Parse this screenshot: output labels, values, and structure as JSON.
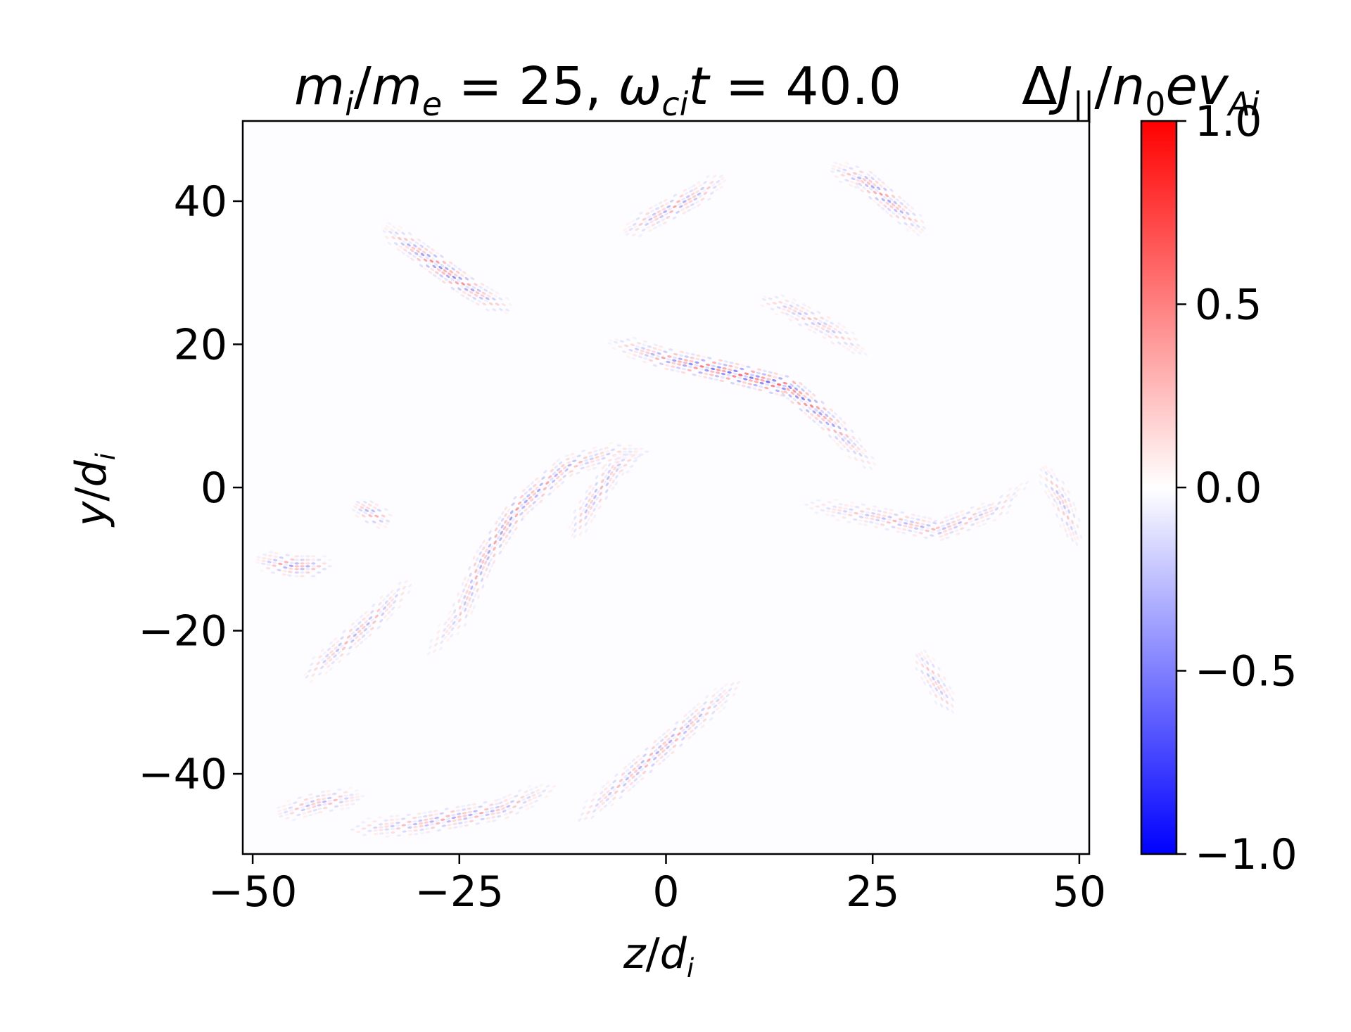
{
  "chart_data": {
    "type": "heatmap",
    "title": {
      "m": "m",
      "i": "i",
      "slash": "/",
      "e": "e",
      "eq1": " = 25, ",
      "omega": "ω",
      "ci": "ci",
      "t": "t",
      "eq2": " = 40.0"
    },
    "colorbar_label": {
      "delta": "Δ",
      "J": "J",
      "par": "||",
      "slash": "/",
      "n": "n",
      "zero": "0",
      "ev": "ev",
      "A": "A",
      "i": "i"
    },
    "xlabel": {
      "var": "z",
      "slash": "/",
      "d": "d",
      "sub": "i"
    },
    "ylabel": {
      "var": "y",
      "slash": "/",
      "d": "d",
      "sub": "i"
    },
    "xlim": [
      -51.2,
      51.2
    ],
    "ylim": [
      -51.2,
      51.2
    ],
    "x_ticks": [
      {
        "value": -50,
        "label": "−50"
      },
      {
        "value": -25,
        "label": "−25"
      },
      {
        "value": 0,
        "label": "0"
      },
      {
        "value": 25,
        "label": "25"
      },
      {
        "value": 50,
        "label": "50"
      }
    ],
    "y_ticks": [
      {
        "value": 40,
        "label": "40"
      },
      {
        "value": 20,
        "label": "20"
      },
      {
        "value": 0,
        "label": "0"
      },
      {
        "value": -20,
        "label": "−20"
      },
      {
        "value": -40,
        "label": "−40"
      }
    ],
    "colorbar": {
      "range": [
        -1.0,
        1.0
      ],
      "colormap": "bwr",
      "colors": {
        "low": "#0000ff",
        "mid": "#ffffff",
        "high": "#ff0000"
      },
      "ticks": [
        {
          "value": 1.0,
          "label": "1.0"
        },
        {
          "value": 0.5,
          "label": "0.5"
        },
        {
          "value": 0.0,
          "label": "0.0"
        },
        {
          "value": -0.5,
          "label": "−0.5"
        },
        {
          "value": -1.0,
          "label": "−1.0"
        }
      ]
    },
    "structures": [
      {
        "name": "filament-upper-left",
        "path": [
          [
            -35,
            37
          ],
          [
            -30,
            33
          ],
          [
            -24,
            28
          ],
          [
            -18,
            24
          ]
        ],
        "amp": 0.55
      },
      {
        "name": "filament-center-right",
        "path": [
          [
            -8,
            21
          ],
          [
            0,
            18
          ],
          [
            8,
            16
          ],
          [
            15,
            14
          ],
          [
            20,
            9
          ],
          [
            24,
            4
          ],
          [
            26,
            2
          ]
        ],
        "amp": 0.7
      },
      {
        "name": "filament-top-center",
        "path": [
          [
            -6,
            35
          ],
          [
            -1,
            38
          ],
          [
            4,
            41
          ],
          [
            8,
            44
          ]
        ],
        "amp": 0.4
      },
      {
        "name": "filament-top-right",
        "path": [
          [
            19,
            45
          ],
          [
            24,
            43
          ],
          [
            28,
            39
          ],
          [
            32,
            35
          ]
        ],
        "amp": 0.45
      },
      {
        "name": "filament-center-s",
        "path": [
          [
            -30,
            -25
          ],
          [
            -25,
            -18
          ],
          [
            -22,
            -10
          ],
          [
            -18,
            -3
          ],
          [
            -12,
            3
          ],
          [
            -6,
            5
          ],
          [
            0,
            5
          ]
        ],
        "amp": 0.45
      },
      {
        "name": "filament-center-mid",
        "path": [
          [
            -12,
            -8
          ],
          [
            -9,
            -2
          ],
          [
            -6,
            3
          ],
          [
            -2,
            5
          ]
        ],
        "amp": 0.35
      },
      {
        "name": "filament-left-mid",
        "path": [
          [
            -50,
            -10
          ],
          [
            -45,
            -11
          ],
          [
            -40,
            -11
          ]
        ],
        "amp": 0.45
      },
      {
        "name": "filament-left-small",
        "path": [
          [
            -38,
            -2
          ],
          [
            -35,
            -4
          ],
          [
            -33,
            -5
          ]
        ],
        "amp": 0.4
      },
      {
        "name": "filament-left-lower",
        "path": [
          [
            -45,
            -28
          ],
          [
            -40,
            -23
          ],
          [
            -35,
            -18
          ],
          [
            -30,
            -12
          ]
        ],
        "amp": 0.35
      },
      {
        "name": "filament-right-mid",
        "path": [
          [
            15,
            -2
          ],
          [
            25,
            -4
          ],
          [
            33,
            -6
          ],
          [
            40,
            -3
          ],
          [
            45,
            2
          ]
        ],
        "amp": 0.35
      },
      {
        "name": "filament-lower-center",
        "path": [
          [
            -12,
            -48
          ],
          [
            -6,
            -42
          ],
          [
            0,
            -36
          ],
          [
            6,
            -30
          ],
          [
            10,
            -26
          ]
        ],
        "amp": 0.4
      },
      {
        "name": "filament-bottom-left",
        "path": [
          [
            -48,
            -46
          ],
          [
            -42,
            -44
          ],
          [
            -36,
            -43
          ]
        ],
        "amp": 0.35
      },
      {
        "name": "filament-bottom",
        "path": [
          [
            -40,
            -48
          ],
          [
            -30,
            -47
          ],
          [
            -20,
            -45
          ],
          [
            -12,
            -41
          ]
        ],
        "amp": 0.4
      },
      {
        "name": "filament-right-lower",
        "path": [
          [
            30,
            -22
          ],
          [
            33,
            -28
          ],
          [
            35,
            -32
          ]
        ],
        "amp": 0.3
      },
      {
        "name": "filament-upper-right",
        "path": [
          [
            10,
            27
          ],
          [
            15,
            25
          ],
          [
            20,
            22
          ],
          [
            25,
            18
          ]
        ],
        "amp": 0.3
      },
      {
        "name": "filament-right-edge",
        "path": [
          [
            45,
            4
          ],
          [
            48,
            -2
          ],
          [
            50,
            -9
          ]
        ],
        "amp": 0.3
      }
    ]
  }
}
